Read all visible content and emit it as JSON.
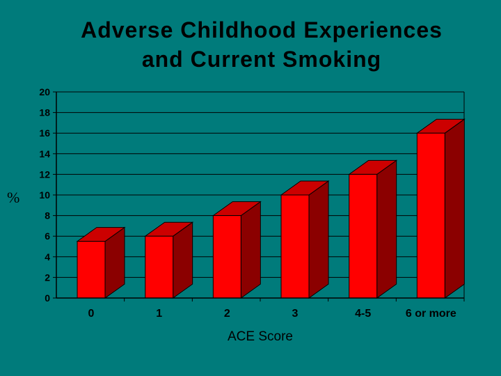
{
  "title_lines": [
    "Adverse Childhood Experiences",
    "and Current Smoking"
  ],
  "colors": {
    "background": "#007b7b",
    "bar_front": "#ff0000",
    "bar_side": "#8b0000",
    "bar_top": "#cc0000"
  },
  "chart_data": {
    "type": "bar",
    "title": "Adverse Childhood Experiences and Current Smoking",
    "xlabel": "ACE Score",
    "ylabel": "%",
    "categories": [
      "0",
      "1",
      "2",
      "3",
      "4-5",
      "6 or more"
    ],
    "values": [
      5.5,
      6,
      8,
      10,
      12,
      16
    ],
    "ylim": [
      0,
      20
    ],
    "yticks": [
      "0",
      "2",
      "4",
      "6",
      "8",
      "10",
      "12",
      "14",
      "16",
      "18",
      "20"
    ],
    "grid": true,
    "legend": "none",
    "style": "3d"
  }
}
